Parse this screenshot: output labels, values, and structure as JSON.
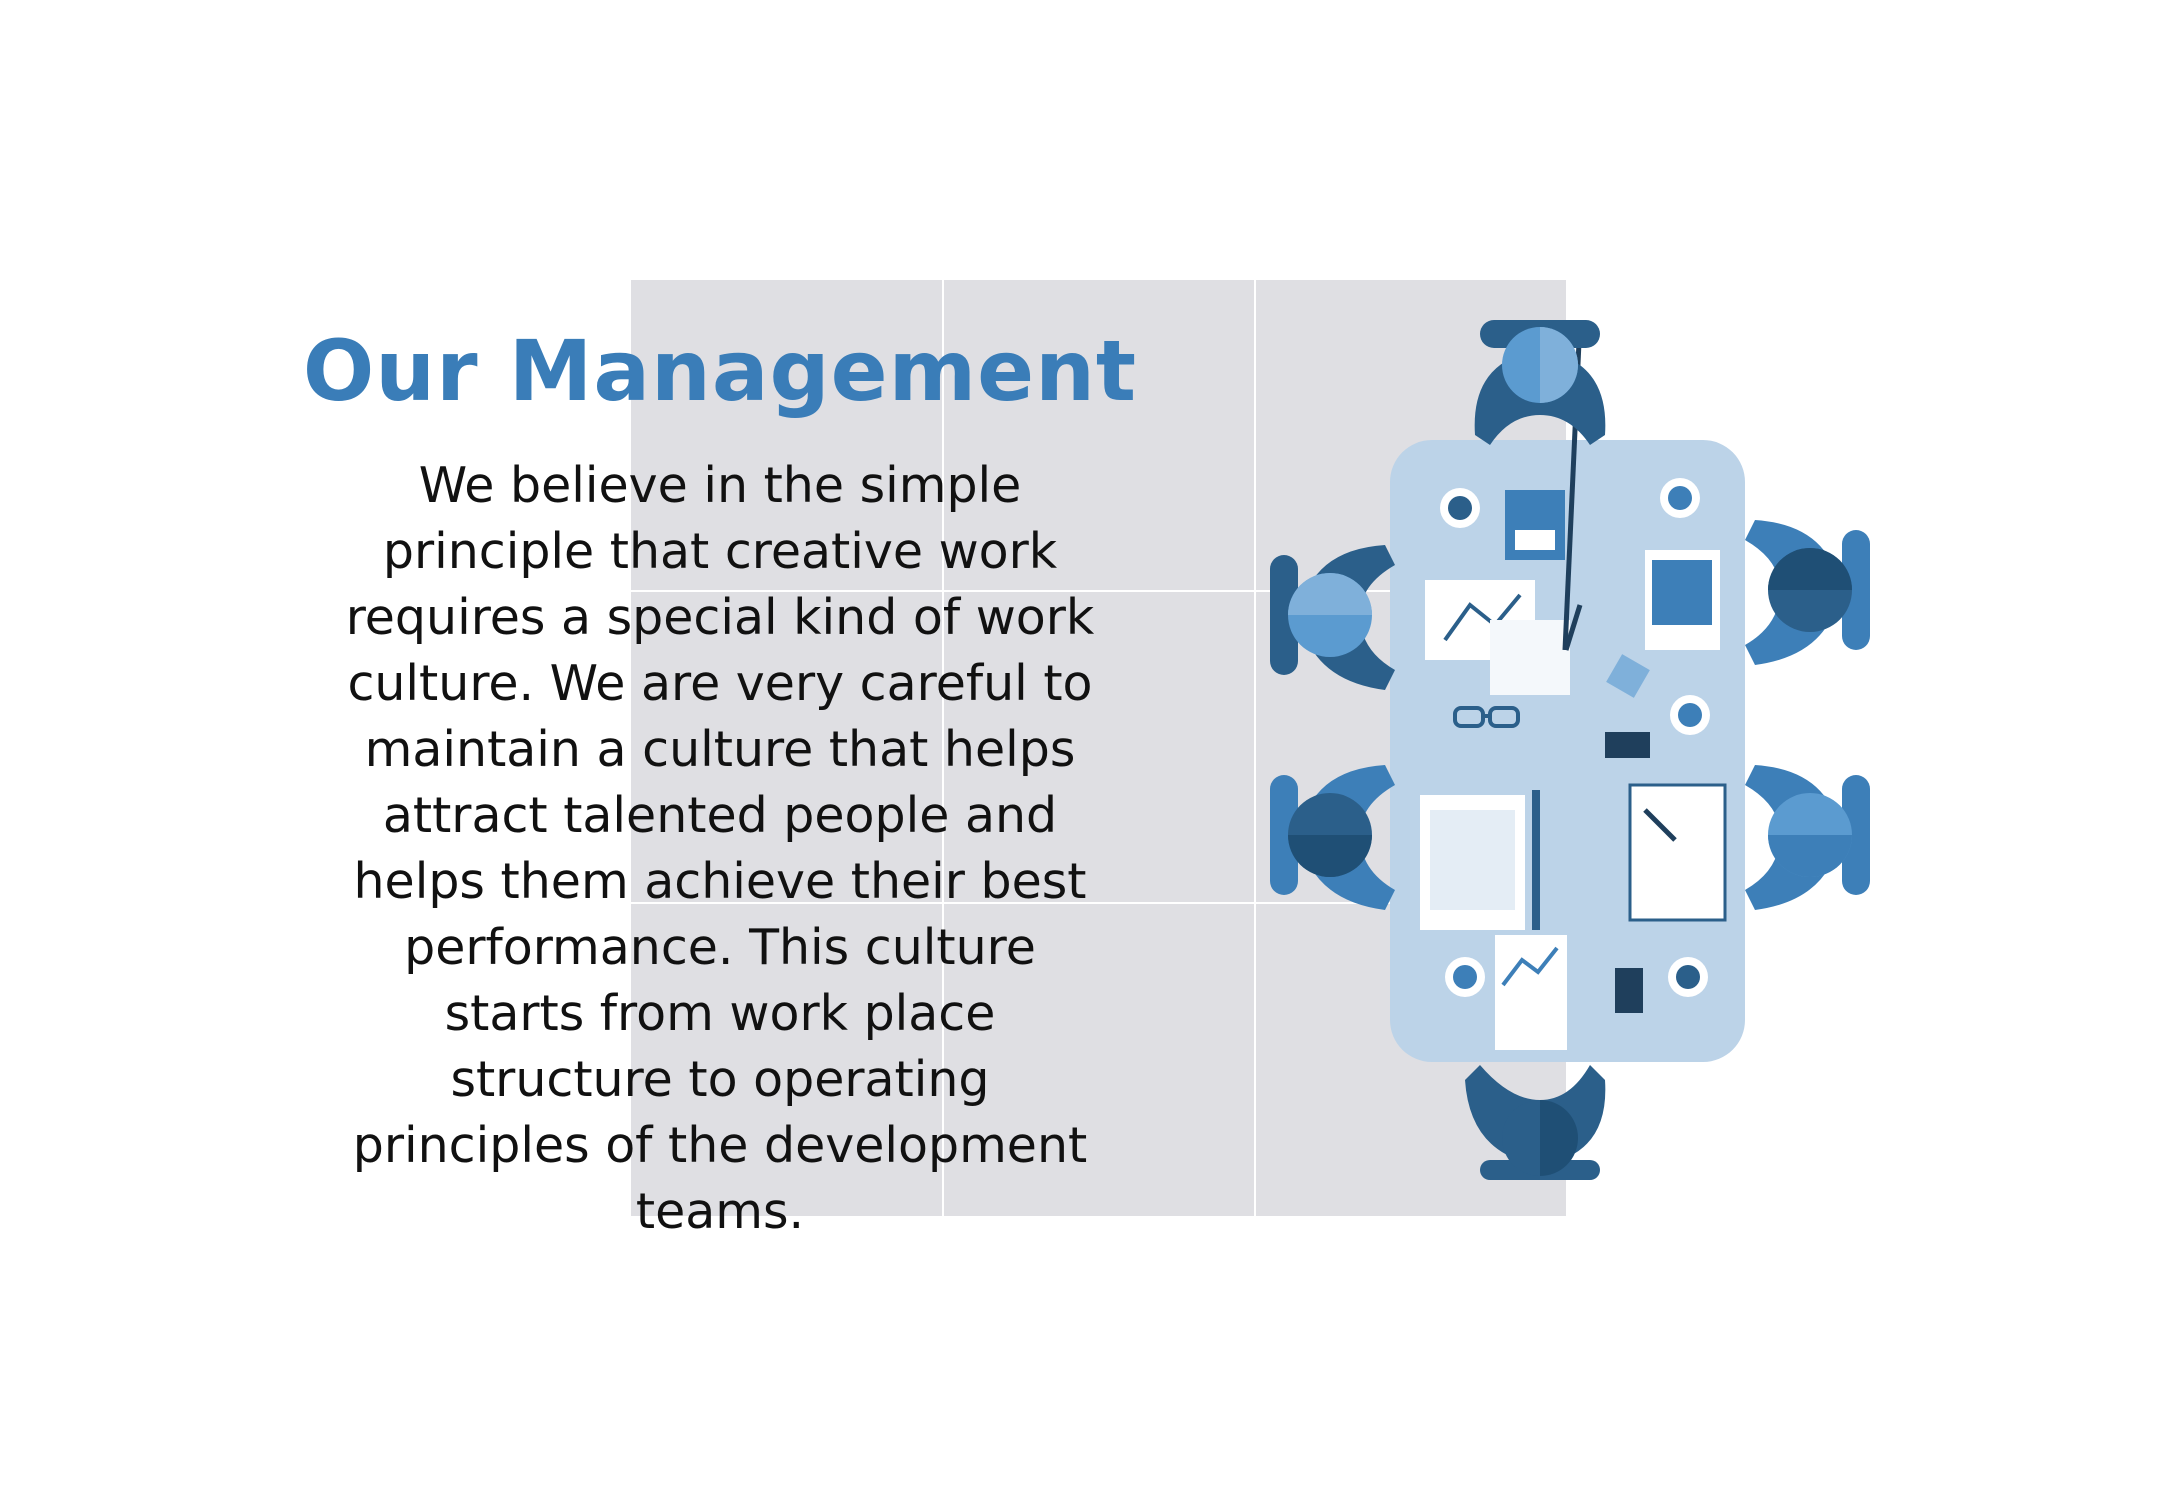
{
  "header": {
    "title": "Our Management"
  },
  "content": {
    "paragraph": "We believe in the simple principle that creative work requires a special kind of work culture. We are very careful to maintain a culture that helps attract talented people and helps them achieve their best performance. This culture starts from work place structure to operating principles of the development teams."
  },
  "illustration": {
    "icon": "meeting-table-top-view-icon",
    "people_count": 6
  },
  "colors": {
    "title": "#3a7db8",
    "panel": "#dfdfe3",
    "table": "#bcd3e8",
    "dark_blue": "#2b5f8a",
    "mid_blue": "#3d7fb8",
    "light_blue": "#5b9bd0"
  }
}
